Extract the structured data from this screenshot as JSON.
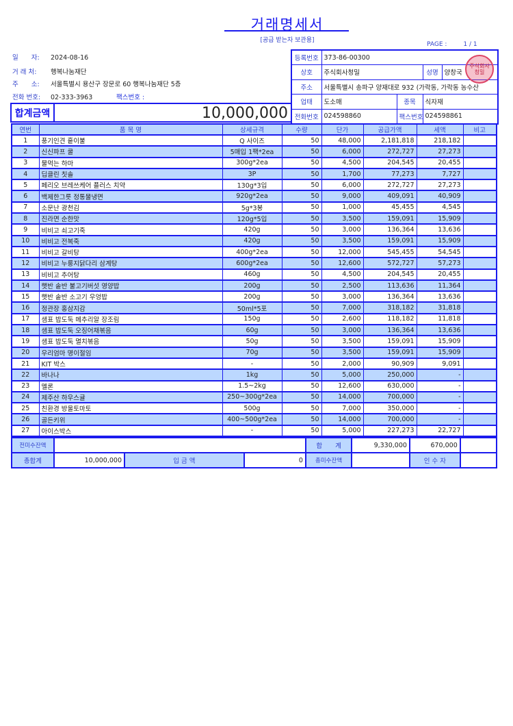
{
  "title": "거래명세서",
  "subtitle": "[공급 받는자 보관용]",
  "page": {
    "label": "PAGE :",
    "value": "1 / 1"
  },
  "buyer": {
    "date_label": "일　　자:",
    "date": "2024-08-16",
    "client_label": "거 래 처:",
    "client": "행복나눔재단",
    "address_label": "주　　소:",
    "address": "서울특별시 용산구 장문로 60 행복나눔재단 5층",
    "phone_label": "전화 번호:",
    "phone": "02-333-3963",
    "fax_label": "팩스번호 :",
    "fax": ""
  },
  "total_amount": {
    "label": "합계금액",
    "value": "10,000,000"
  },
  "supplier": {
    "reg_label": "등록번호",
    "reg": "373-86-00300",
    "name_label": "상호",
    "name": "주식회사청밀",
    "rep_label": "성명",
    "rep": "양창국",
    "addr_label": "주소",
    "addr": "서울특별시 송파구 양재대로 932 (가락동, 가락동 농수산",
    "biz_label": "업태",
    "biz": "도소매",
    "type_label": "종목",
    "type": "식자재",
    "phone_label": "전화번호",
    "phone": "024598860",
    "fax_label": "팩스번호",
    "fax": "024598861",
    "stamp_text": "주식회사 청밀"
  },
  "table": {
    "headers": [
      "연번",
      "품 목 명",
      "상세규격",
      "수량",
      "단가",
      "공급가액",
      "세액",
      "비고"
    ],
    "rows": [
      [
        "1",
        "풍기인견 홑이불",
        "Q 사이즈",
        "50",
        "48,000",
        "2,181,818",
        "218,182",
        ""
      ],
      [
        "2",
        "신신파프 쿨",
        "5매입 1팩*2ea",
        "50",
        "6,000",
        "272,727",
        "27,273",
        ""
      ],
      [
        "3",
        "물먹는 하마",
        "300g*2ea",
        "50",
        "4,500",
        "204,545",
        "20,455",
        ""
      ],
      [
        "4",
        "딥클린 칫솔",
        "3P",
        "50",
        "1,700",
        "77,273",
        "7,727",
        ""
      ],
      [
        "5",
        "페리오 브레쓰케어 플러스 치약",
        "130g*3입",
        "50",
        "6,000",
        "272,727",
        "27,273",
        ""
      ],
      [
        "6",
        "백제한그릇 정통물냉면",
        "920g*2ea",
        "50",
        "9,000",
        "409,091",
        "40,909",
        ""
      ],
      [
        "7",
        "소문난 광천김",
        "5g*3봉",
        "50",
        "1,000",
        "45,455",
        "4,545",
        ""
      ],
      [
        "8",
        "진라면 순한맛",
        "120g*5입",
        "50",
        "3,500",
        "159,091",
        "15,909",
        ""
      ],
      [
        "9",
        "비비고 쇠고기죽",
        "420g",
        "50",
        "3,000",
        "136,364",
        "13,636",
        ""
      ],
      [
        "10",
        "비비고 전복죽",
        "420g",
        "50",
        "3,500",
        "159,091",
        "15,909",
        ""
      ],
      [
        "11",
        "비비고 갈비탕",
        "400g*2ea",
        "50",
        "12,000",
        "545,455",
        "54,545",
        ""
      ],
      [
        "12",
        "비비고 누룽지닭다리 삼계탕",
        "600g*2ea",
        "50",
        "12,600",
        "572,727",
        "57,273",
        ""
      ],
      [
        "13",
        "비비고 추어탕",
        "460g",
        "50",
        "4,500",
        "204,545",
        "20,455",
        ""
      ],
      [
        "14",
        "햇반 솥반 불고기버섯 영양밥",
        "200g",
        "50",
        "2,500",
        "113,636",
        "11,364",
        ""
      ],
      [
        "15",
        "햇반 솥반 소고기 우엉밥",
        "200g",
        "50",
        "3,000",
        "136,364",
        "13,636",
        ""
      ],
      [
        "16",
        "정관장 홍삼지감",
        "50ml*5포",
        "50",
        "7,000",
        "318,182",
        "31,818",
        ""
      ],
      [
        "17",
        "샘표 밥도둑 메추리알 장조림",
        "150g",
        "50",
        "2,600",
        "118,182",
        "11,818",
        ""
      ],
      [
        "18",
        "샘표 밥도둑 오징어채볶음",
        "60g",
        "50",
        "3,000",
        "136,364",
        "13,636",
        ""
      ],
      [
        "19",
        "샘표 밥도둑 멸치볶음",
        "50g",
        "50",
        "3,500",
        "159,091",
        "15,909",
        ""
      ],
      [
        "20",
        "우리엄마 명이절임",
        "70g",
        "50",
        "3,500",
        "159,091",
        "15,909",
        ""
      ],
      [
        "21",
        "KIT 박스",
        "-",
        "50",
        "2,000",
        "90,909",
        "9,091",
        ""
      ],
      [
        "22",
        "바나나",
        "1kg",
        "50",
        "5,000",
        "250,000",
        "-",
        ""
      ],
      [
        "23",
        "멜론",
        "1.5~2kg",
        "50",
        "12,600",
        "630,000",
        "-",
        ""
      ],
      [
        "24",
        "제주산 하우스귤",
        "250~300g*2ea",
        "50",
        "14,000",
        "700,000",
        "-",
        ""
      ],
      [
        "25",
        "친환경 방울토마토",
        "500g",
        "50",
        "7,000",
        "350,000",
        "-",
        ""
      ],
      [
        "26",
        "골든키위",
        "400~500g*2ea",
        "50",
        "14,000",
        "700,000",
        "-",
        ""
      ],
      [
        "27",
        "아이스박스",
        "-",
        "50",
        "5,000",
        "227,273",
        "22,727",
        ""
      ]
    ]
  },
  "footer": {
    "prev_balance_label": "전미수잔액",
    "prev_balance": "",
    "sum_label": "합　　계",
    "sum_supply": "9,330,000",
    "sum_tax": "670,000",
    "grand_total_label": "총합계",
    "grand_total": "10,000,000",
    "deposit_label": "입 금 액",
    "deposit": "0",
    "total_balance_label": "총미수잔액",
    "total_balance": "",
    "receiver_label": "인 수 자",
    "receiver": ""
  }
}
